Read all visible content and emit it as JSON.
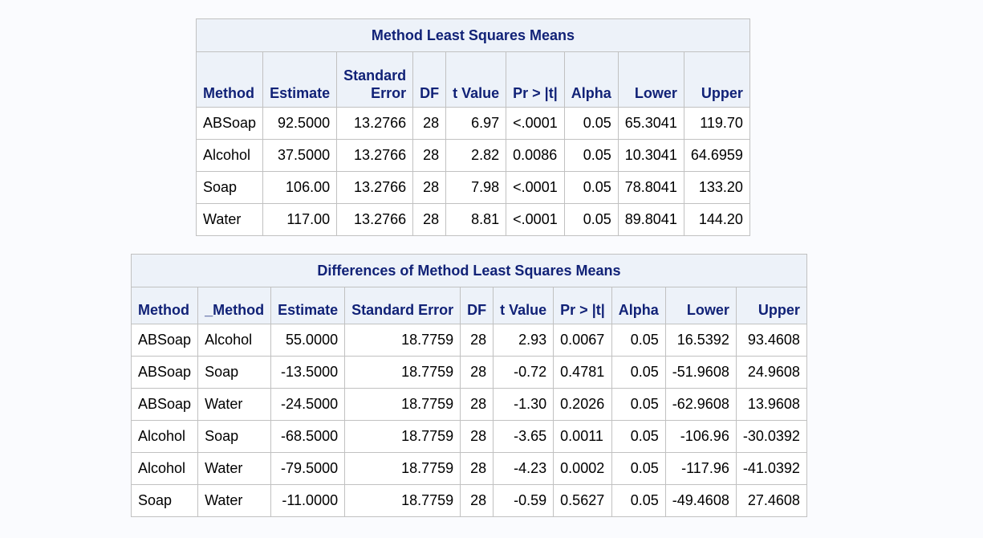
{
  "lsmeans": {
    "title": "Method Least Squares Means",
    "headers": [
      "Method",
      "Estimate",
      "Standard\nError",
      "DF",
      "t Value",
      "Pr > |t|",
      "Alpha",
      "Lower",
      "Upper"
    ],
    "rows": [
      [
        "ABSoap",
        "92.5000",
        "13.2766",
        "28",
        "6.97",
        "<.0001",
        "0.05",
        "65.3041",
        "119.70"
      ],
      [
        "Alcohol",
        "37.5000",
        "13.2766",
        "28",
        "2.82",
        "0.0086",
        "0.05",
        "10.3041",
        "64.6959"
      ],
      [
        "Soap",
        "106.00",
        "13.2766",
        "28",
        "7.98",
        "<.0001",
        "0.05",
        "78.8041",
        "133.20"
      ],
      [
        "Water",
        "117.00",
        "13.2766",
        "28",
        "8.81",
        "<.0001",
        "0.05",
        "89.8041",
        "144.20"
      ]
    ]
  },
  "diffs": {
    "title": "Differences of Method Least Squares Means",
    "headers": [
      "Method",
      "_Method",
      "Estimate",
      "Standard Error",
      "DF",
      "t Value",
      "Pr > |t|",
      "Alpha",
      "Lower",
      "Upper"
    ],
    "rows": [
      [
        "ABSoap",
        "Alcohol",
        "55.0000",
        "18.7759",
        "28",
        "2.93",
        "0.0067",
        "0.05",
        "16.5392",
        "93.4608"
      ],
      [
        "ABSoap",
        "Soap",
        "-13.5000",
        "18.7759",
        "28",
        "-0.72",
        "0.4781",
        "0.05",
        "-51.9608",
        "24.9608"
      ],
      [
        "ABSoap",
        "Water",
        "-24.5000",
        "18.7759",
        "28",
        "-1.30",
        "0.2026",
        "0.05",
        "-62.9608",
        "13.9608"
      ],
      [
        "Alcohol",
        "Soap",
        "-68.5000",
        "18.7759",
        "28",
        "-3.65",
        "0.0011",
        "0.05",
        "-106.96",
        "-30.0392"
      ],
      [
        "Alcohol",
        "Water",
        "-79.5000",
        "18.7759",
        "28",
        "-4.23",
        "0.0002",
        "0.05",
        "-117.96",
        "-41.0392"
      ],
      [
        "Soap",
        "Water",
        "-11.0000",
        "18.7759",
        "28",
        "-0.59",
        "0.5627",
        "0.05",
        "-49.4608",
        "27.4608"
      ]
    ]
  },
  "colors": {
    "header_bg": "#edf2f9",
    "header_text": "#112277",
    "border": "#c1c1c1",
    "page_bg": "#fafbfe"
  }
}
